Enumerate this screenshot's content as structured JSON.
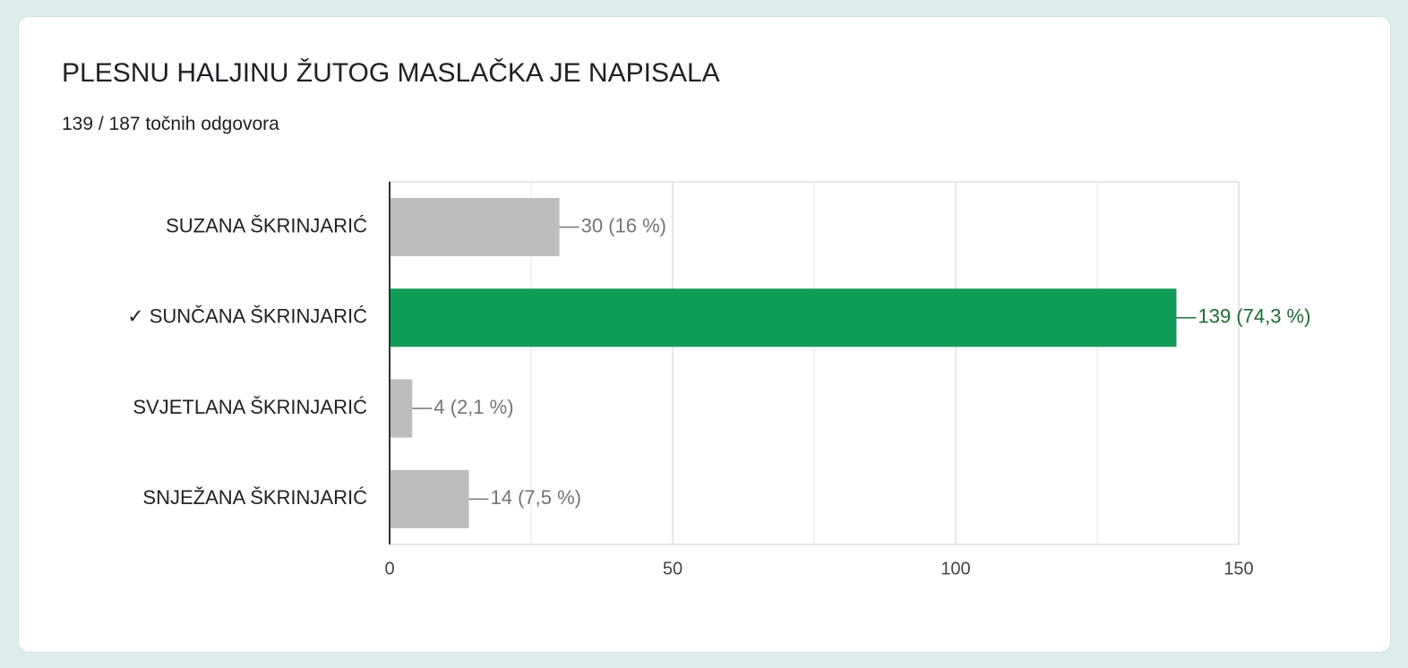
{
  "chart_data": {
    "type": "hbar",
    "title": "PLESNU HALJINU ŽUTOG MASLAČKA JE NAPISALA",
    "subtitle": "139 / 187 točnih odgovora",
    "categories": [
      "SUZANA ŠKRINJARIĆ",
      "✓ SUNČANA ŠKRINJARIĆ",
      "SVJETLANA ŠKRINJARIĆ",
      "SNJEŽANA ŠKRINJARIĆ"
    ],
    "values": [
      30,
      139,
      4,
      14
    ],
    "value_labels": [
      "30 (16 %)",
      "139 (74,3 %)",
      "4 (2,1 %)",
      "14 (7,5 %)"
    ],
    "colors": [
      "#bdbdbd",
      "#0f9d58",
      "#bdbdbd",
      "#bdbdbd"
    ],
    "label_colors": [
      "#757575",
      "#137333",
      "#757575",
      "#757575"
    ],
    "xlim": [
      0,
      150
    ],
    "xticks": [
      0,
      50,
      100,
      150
    ],
    "grid": true
  }
}
